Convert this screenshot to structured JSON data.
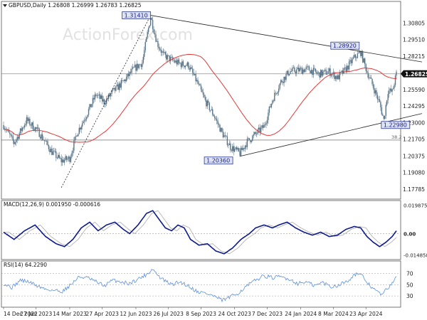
{
  "chart_data": [
    {
      "type": "candlestick",
      "header": "GBPUSD,Daily  1.26808 1.26999 1.26783 1.26825",
      "watermark": "ActionForex.com",
      "ylim": [
        1.17,
        1.325
      ],
      "yticks": [
        "1.30805",
        "1.29510",
        "1.28215",
        "1.26825",
        "1.25590",
        "1.24295",
        "1.23000",
        "1.21705",
        "1.20375",
        "1.19080",
        "1.17785"
      ],
      "ytick_values": [
        1.30805,
        1.2951,
        1.28215,
        1.26825,
        1.2559,
        1.24295,
        1.23,
        1.21705,
        1.20375,
        1.1908,
        1.17785
      ],
      "current_price": "1.26825",
      "fib_label": "38.2",
      "fib_level": 1.2163,
      "annotations": [
        {
          "text": "1.31410",
          "x": 140,
          "y": 1.3141
        },
        {
          "text": "1.28920",
          "x": 340,
          "y": 1.2892
        },
        {
          "text": "1.22980",
          "x": 361,
          "y": 1.2298
        },
        {
          "text": "1.20360",
          "x": 225,
          "y": 1.2036
        }
      ],
      "xlabels": [
        "14 Dec 2022",
        "27 Jan 2023",
        "14 Mar 2023",
        "27 Apr 2023",
        "12 Jun 2023",
        "26 Jul 2023",
        "8 Sep 2023",
        "24 Oct 2023",
        "7 Dec 2023",
        "24 Jan 2024",
        "8 Mar 2024",
        "23 Apr 2024"
      ],
      "xlabel_index": [
        0,
        31,
        63,
        94,
        126,
        157,
        188,
        220,
        251,
        283,
        314,
        345
      ],
      "n_bars": 375,
      "close_anchors": [
        [
          0,
          1.228
        ],
        [
          10,
          1.214
        ],
        [
          22,
          1.232
        ],
        [
          33,
          1.223
        ],
        [
          46,
          1.207
        ],
        [
          55,
          1.2
        ],
        [
          63,
          1.202
        ],
        [
          70,
          1.222
        ],
        [
          80,
          1.238
        ],
        [
          88,
          1.252
        ],
        [
          96,
          1.246
        ],
        [
          104,
          1.254
        ],
        [
          114,
          1.262
        ],
        [
          124,
          1.272
        ],
        [
          132,
          1.277
        ],
        [
          140,
          1.313
        ],
        [
          146,
          1.293
        ],
        [
          152,
          1.283
        ],
        [
          160,
          1.279
        ],
        [
          168,
          1.276
        ],
        [
          176,
          1.275
        ],
        [
          184,
          1.262
        ],
        [
          192,
          1.247
        ],
        [
          200,
          1.236
        ],
        [
          208,
          1.222
        ],
        [
          216,
          1.211
        ],
        [
          225,
          1.206
        ],
        [
          232,
          1.215
        ],
        [
          240,
          1.221
        ],
        [
          248,
          1.227
        ],
        [
          256,
          1.248
        ],
        [
          264,
          1.262
        ],
        [
          272,
          1.27
        ],
        [
          280,
          1.271
        ],
        [
          290,
          1.272
        ],
        [
          300,
          1.268
        ],
        [
          310,
          1.27
        ],
        [
          318,
          1.265
        ],
        [
          326,
          1.272
        ],
        [
          334,
          1.281
        ],
        [
          340,
          1.285
        ],
        [
          346,
          1.27
        ],
        [
          352,
          1.258
        ],
        [
          358,
          1.245
        ],
        [
          362,
          1.232
        ],
        [
          366,
          1.255
        ],
        [
          370,
          1.254
        ],
        [
          374,
          1.2682
        ]
      ],
      "trendlines": [
        {
          "points": [
            [
              55,
              1.179
            ],
            [
              140,
              1.3141
            ]
          ],
          "style": "dashed"
        },
        {
          "points": [
            [
              140,
              1.3141
            ],
            [
              374,
              1.2817
            ]
          ],
          "style": "solid"
        },
        {
          "points": [
            [
              225,
              1.2036
            ],
            [
              374,
              1.2315
            ]
          ],
          "style": "solid"
        }
      ],
      "ma_period": 55,
      "colors": {
        "candle": "#5a7588",
        "ma": "#e03a3a",
        "trend": "#222222",
        "annotation_fill": "#dde4f4",
        "annotation_border": "#2b3a8c",
        "price_marker": "#111111"
      }
    },
    {
      "type": "line",
      "label": "MACD(12,26,9) 0.001950 -0.000616",
      "ylim": [
        -0.018,
        0.023
      ],
      "yticks": [
        "0.019875",
        "0.00",
        "-0.014858"
      ],
      "ytick_values": [
        0.019875,
        0.0,
        -0.014858
      ],
      "current_value": "0.00",
      "macd_anchors": [
        [
          0,
          0.001
        ],
        [
          10,
          -0.004
        ],
        [
          20,
          0.002
        ],
        [
          30,
          0.006
        ],
        [
          40,
          -0.002
        ],
        [
          50,
          -0.007
        ],
        [
          58,
          -0.009
        ],
        [
          66,
          -0.004
        ],
        [
          74,
          0.004
        ],
        [
          82,
          0.008
        ],
        [
          90,
          0.002
        ],
        [
          98,
          0.006
        ],
        [
          106,
          0.008
        ],
        [
          114,
          0.003
        ],
        [
          120,
          0.0
        ],
        [
          128,
          0.006
        ],
        [
          136,
          0.014
        ],
        [
          142,
          0.016
        ],
        [
          148,
          0.01
        ],
        [
          154,
          0.004
        ],
        [
          160,
          0.002
        ],
        [
          166,
          0.006
        ],
        [
          172,
          0.004
        ],
        [
          178,
          -0.004
        ],
        [
          186,
          -0.008
        ],
        [
          194,
          -0.007
        ],
        [
          202,
          -0.012
        ],
        [
          210,
          -0.014
        ],
        [
          218,
          -0.01
        ],
        [
          226,
          -0.004
        ],
        [
          234,
          0.0
        ],
        [
          240,
          0.004
        ],
        [
          248,
          0.006
        ],
        [
          256,
          0.004
        ],
        [
          262,
          0.006
        ],
        [
          270,
          0.008
        ],
        [
          278,
          0.004
        ],
        [
          286,
          0.001
        ],
        [
          294,
          -0.001
        ],
        [
          302,
          0.001
        ],
        [
          310,
          -0.002
        ],
        [
          318,
          -0.001
        ],
        [
          326,
          0.003
        ],
        [
          334,
          0.005
        ],
        [
          340,
          0.004
        ],
        [
          346,
          -0.002
        ],
        [
          352,
          -0.006
        ],
        [
          358,
          -0.009
        ],
        [
          364,
          -0.006
        ],
        [
          370,
          -0.002
        ],
        [
          374,
          0.00195
        ]
      ],
      "colors": {
        "macd": "#0c1a8c",
        "signal": "#aaaaaa",
        "zero": "#999999"
      }
    },
    {
      "type": "line",
      "label": "RSI(14) 64.2290",
      "ylim": [
        10,
        92
      ],
      "yticks": [
        "70",
        "50",
        "30"
      ],
      "ytick_values": [
        70,
        50,
        30
      ],
      "rsi_anchors": [
        [
          0,
          52
        ],
        [
          8,
          45
        ],
        [
          16,
          58
        ],
        [
          24,
          55
        ],
        [
          32,
          48
        ],
        [
          40,
          42
        ],
        [
          48,
          40
        ],
        [
          56,
          38
        ],
        [
          64,
          50
        ],
        [
          72,
          64
        ],
        [
          80,
          62
        ],
        [
          88,
          55
        ],
        [
          96,
          48
        ],
        [
          104,
          58
        ],
        [
          112,
          55
        ],
        [
          120,
          52
        ],
        [
          128,
          60
        ],
        [
          136,
          68
        ],
        [
          142,
          78
        ],
        [
          148,
          64
        ],
        [
          154,
          56
        ],
        [
          160,
          50
        ],
        [
          168,
          55
        ],
        [
          176,
          48
        ],
        [
          184,
          38
        ],
        [
          192,
          35
        ],
        [
          200,
          30
        ],
        [
          208,
          22
        ],
        [
          216,
          28
        ],
        [
          224,
          36
        ],
        [
          232,
          48
        ],
        [
          240,
          58
        ],
        [
          248,
          66
        ],
        [
          256,
          62
        ],
        [
          264,
          64
        ],
        [
          272,
          60
        ],
        [
          280,
          52
        ],
        [
          288,
          55
        ],
        [
          296,
          48
        ],
        [
          304,
          54
        ],
        [
          312,
          46
        ],
        [
          320,
          50
        ],
        [
          328,
          58
        ],
        [
          336,
          70
        ],
        [
          342,
          64
        ],
        [
          348,
          50
        ],
        [
          354,
          40
        ],
        [
          360,
          32
        ],
        [
          366,
          44
        ],
        [
          370,
          54
        ],
        [
          374,
          64.229
        ]
      ],
      "colors": {
        "rsi": "#5b8fd9",
        "guide": "#999999"
      }
    }
  ]
}
